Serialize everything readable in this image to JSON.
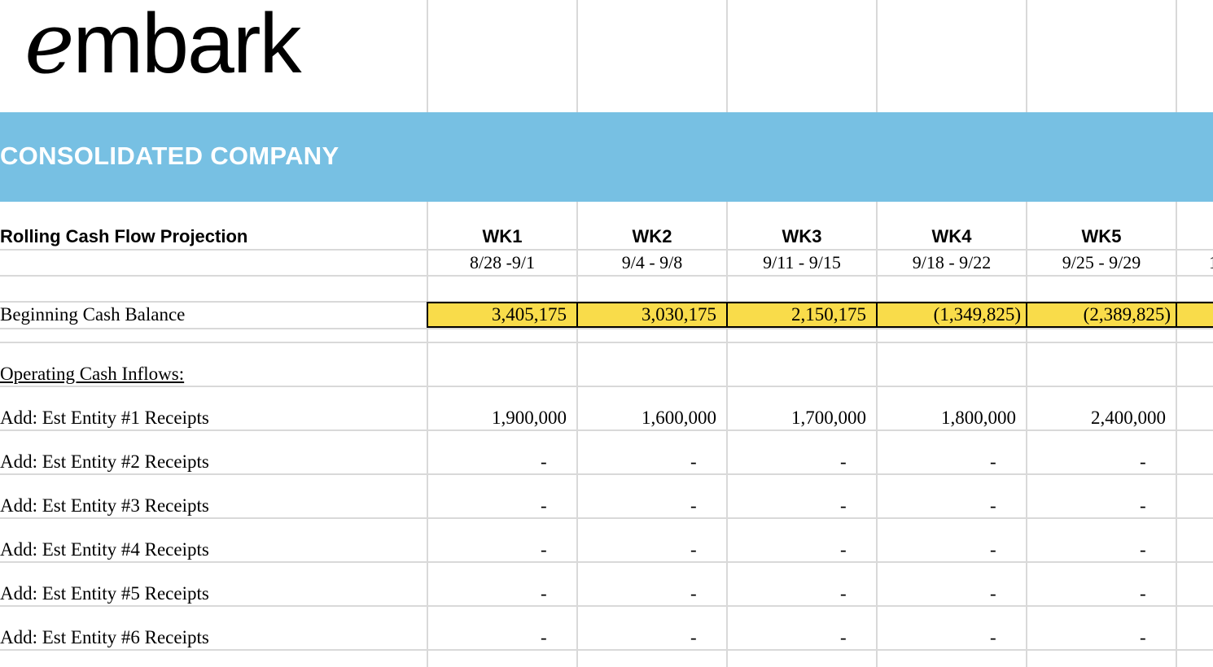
{
  "logo": {
    "first_letter": "e",
    "rest": "mbark"
  },
  "banner": {
    "title": "CONSOLIDATED COMPANY",
    "color": "#77c0e3"
  },
  "header": {
    "title": "Rolling Cash Flow Projection",
    "weeks": [
      {
        "label": "WK1",
        "range": "8/28 -9/1"
      },
      {
        "label": "WK2",
        "range": "9/4 - 9/8"
      },
      {
        "label": "WK3",
        "range": "9/11 - 9/15"
      },
      {
        "label": "WK4",
        "range": "9/18 - 9/22"
      },
      {
        "label": "WK5",
        "range": "9/25 - 9/29"
      }
    ],
    "next_range_partial": "1"
  },
  "beginning_balance": {
    "label": "Beginning Cash Balance",
    "values": [
      "3,405,175",
      "3,030,175",
      "2,150,175",
      "(1,349,825)",
      "(2,389,825)"
    ],
    "highlight_color": "#f9dc4a"
  },
  "inflows": {
    "section_label": "Operating Cash Inflows:",
    "rows": [
      {
        "label": "Add: Est Entity #1 Receipts",
        "values": [
          "1,900,000",
          "1,600,000",
          "1,700,000",
          "1,800,000",
          "2,400,000"
        ]
      },
      {
        "label": "Add: Est Entity #2 Receipts",
        "values": [
          "-",
          "-",
          "-",
          "-",
          "-"
        ]
      },
      {
        "label": "Add: Est Entity #3 Receipts",
        "values": [
          "-",
          "-",
          "-",
          "-",
          "-"
        ]
      },
      {
        "label": "Add: Est Entity #4 Receipts",
        "values": [
          "-",
          "-",
          "-",
          "-",
          "-"
        ]
      },
      {
        "label": "Add: Est Entity #5 Receipts",
        "values": [
          "-",
          "-",
          "-",
          "-",
          "-"
        ]
      },
      {
        "label": "Add: Est Entity #6 Receipts",
        "values": [
          "-",
          "-",
          "-",
          "-",
          "-"
        ]
      }
    ]
  }
}
